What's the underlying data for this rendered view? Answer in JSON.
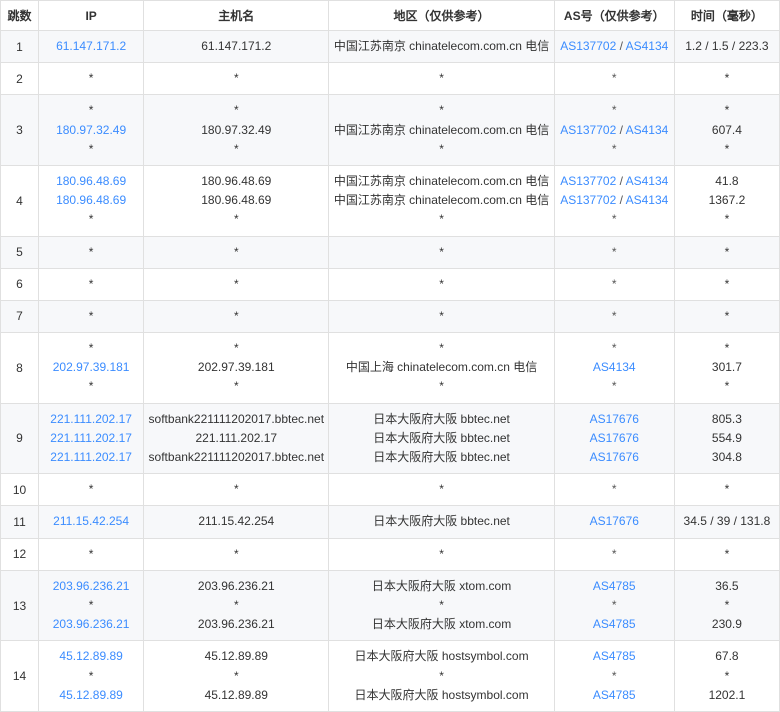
{
  "headers": {
    "hop": "跳数",
    "ip": "IP",
    "host": "主机名",
    "region": "地区（仅供参考）",
    "as": "AS号（仅供参考）",
    "time": "时间（毫秒）"
  },
  "rows": [
    {
      "hop": "1",
      "lines": [
        {
          "ip": "61.147.171.2",
          "ip_link": true,
          "host": "61.147.171.2",
          "region": "中国江苏南京 chinatelecom.com.cn 电信",
          "as": [
            {
              "t": "AS137702",
              "l": true
            },
            {
              "t": " / "
            },
            {
              "t": "AS4134",
              "l": true
            }
          ],
          "time": "1.2 / 1.5 / 223.3"
        }
      ]
    },
    {
      "hop": "2",
      "lines": [
        {
          "ip": "*",
          "host": "*",
          "region": "*",
          "as": [
            {
              "t": "*"
            }
          ],
          "time": "*"
        }
      ]
    },
    {
      "hop": "3",
      "lines": [
        {
          "ip": "*",
          "host": "*",
          "region": "*",
          "as": [
            {
              "t": "*"
            }
          ],
          "time": "*"
        },
        {
          "ip": "180.97.32.49",
          "ip_link": true,
          "host": "180.97.32.49",
          "region": "中国江苏南京 chinatelecom.com.cn 电信",
          "as": [
            {
              "t": "AS137702",
              "l": true
            },
            {
              "t": " / "
            },
            {
              "t": "AS4134",
              "l": true
            }
          ],
          "time": "607.4"
        },
        {
          "ip": "*",
          "host": "*",
          "region": "*",
          "as": [
            {
              "t": "*"
            }
          ],
          "time": "*"
        }
      ]
    },
    {
      "hop": "4",
      "lines": [
        {
          "ip": "180.96.48.69",
          "ip_link": true,
          "host": "180.96.48.69",
          "region": "中国江苏南京 chinatelecom.com.cn 电信",
          "as": [
            {
              "t": "AS137702",
              "l": true
            },
            {
              "t": " / "
            },
            {
              "t": "AS4134",
              "l": true
            }
          ],
          "time": "41.8"
        },
        {
          "ip": "180.96.48.69",
          "ip_link": true,
          "host": "180.96.48.69",
          "region": "中国江苏南京 chinatelecom.com.cn 电信",
          "as": [
            {
              "t": "AS137702",
              "l": true
            },
            {
              "t": " / "
            },
            {
              "t": "AS4134",
              "l": true
            }
          ],
          "time": "1367.2"
        },
        {
          "ip": "*",
          "host": "*",
          "region": "*",
          "as": [
            {
              "t": "*"
            }
          ],
          "time": "*"
        }
      ]
    },
    {
      "hop": "5",
      "lines": [
        {
          "ip": "*",
          "host": "*",
          "region": "*",
          "as": [
            {
              "t": "*"
            }
          ],
          "time": "*"
        }
      ]
    },
    {
      "hop": "6",
      "lines": [
        {
          "ip": "*",
          "host": "*",
          "region": "*",
          "as": [
            {
              "t": "*"
            }
          ],
          "time": "*"
        }
      ]
    },
    {
      "hop": "7",
      "lines": [
        {
          "ip": "*",
          "host": "*",
          "region": "*",
          "as": [
            {
              "t": "*"
            }
          ],
          "time": "*"
        }
      ]
    },
    {
      "hop": "8",
      "lines": [
        {
          "ip": "*",
          "host": "*",
          "region": "*",
          "as": [
            {
              "t": "*"
            }
          ],
          "time": "*"
        },
        {
          "ip": "202.97.39.181",
          "ip_link": true,
          "host": "202.97.39.181",
          "region": "中国上海 chinatelecom.com.cn 电信",
          "as": [
            {
              "t": "AS4134",
              "l": true
            }
          ],
          "time": "301.7"
        },
        {
          "ip": "*",
          "host": "*",
          "region": "*",
          "as": [
            {
              "t": "*"
            }
          ],
          "time": "*"
        }
      ]
    },
    {
      "hop": "9",
      "lines": [
        {
          "ip": "221.111.202.17",
          "ip_link": true,
          "host": "softbank221111202017.bbtec.net",
          "region": "日本大阪府大阪 bbtec.net",
          "as": [
            {
              "t": "AS17676",
              "l": true
            }
          ],
          "time": "805.3"
        },
        {
          "ip": "221.111.202.17",
          "ip_link": true,
          "host": "221.111.202.17",
          "region": "日本大阪府大阪 bbtec.net",
          "as": [
            {
              "t": "AS17676",
              "l": true
            }
          ],
          "time": "554.9"
        },
        {
          "ip": "221.111.202.17",
          "ip_link": true,
          "host": "softbank221111202017.bbtec.net",
          "region": "日本大阪府大阪 bbtec.net",
          "as": [
            {
              "t": "AS17676",
              "l": true
            }
          ],
          "time": "304.8"
        }
      ]
    },
    {
      "hop": "10",
      "lines": [
        {
          "ip": "*",
          "host": "*",
          "region": "*",
          "as": [
            {
              "t": "*"
            }
          ],
          "time": "*"
        }
      ]
    },
    {
      "hop": "11",
      "lines": [
        {
          "ip": "211.15.42.254",
          "ip_link": true,
          "host": "211.15.42.254",
          "region": "日本大阪府大阪 bbtec.net",
          "as": [
            {
              "t": "AS17676",
              "l": true
            }
          ],
          "time": "34.5 / 39 / 131.8"
        }
      ]
    },
    {
      "hop": "12",
      "lines": [
        {
          "ip": "*",
          "host": "*",
          "region": "*",
          "as": [
            {
              "t": "*"
            }
          ],
          "time": "*"
        }
      ]
    },
    {
      "hop": "13",
      "lines": [
        {
          "ip": "203.96.236.21",
          "ip_link": true,
          "host": "203.96.236.21",
          "region": "日本大阪府大阪 xtom.com",
          "as": [
            {
              "t": "AS4785",
              "l": true
            }
          ],
          "time": "36.5"
        },
        {
          "ip": "*",
          "host": "*",
          "region": "*",
          "as": [
            {
              "t": "*"
            }
          ],
          "time": "*"
        },
        {
          "ip": "203.96.236.21",
          "ip_link": true,
          "host": "203.96.236.21",
          "region": "日本大阪府大阪 xtom.com",
          "as": [
            {
              "t": "AS4785",
              "l": true
            }
          ],
          "time": "230.9"
        }
      ]
    },
    {
      "hop": "14",
      "lines": [
        {
          "ip": "45.12.89.89",
          "ip_link": true,
          "host": "45.12.89.89",
          "region": "日本大阪府大阪 hostsymbol.com",
          "as": [
            {
              "t": "AS4785",
              "l": true
            }
          ],
          "time": "67.8"
        },
        {
          "ip": "*",
          "host": "*",
          "region": "*",
          "as": [
            {
              "t": "*"
            }
          ],
          "time": "*"
        },
        {
          "ip": "45.12.89.89",
          "ip_link": true,
          "host": "45.12.89.89",
          "region": "日本大阪府大阪 hostsymbol.com",
          "as": [
            {
              "t": "AS4785",
              "l": true
            }
          ],
          "time": "1202.1"
        }
      ]
    }
  ]
}
